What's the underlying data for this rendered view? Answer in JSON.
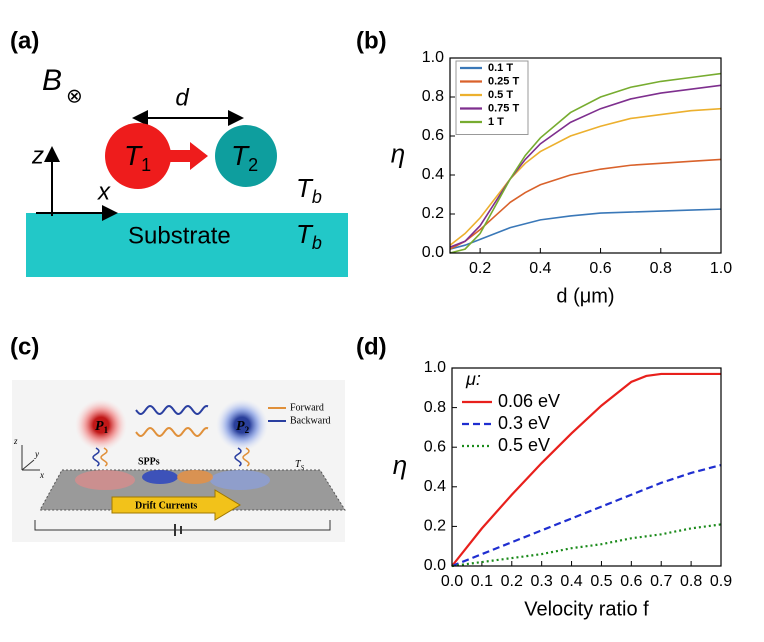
{
  "panels": {
    "a": {
      "label": "(a)",
      "b": "B",
      "otimes": "⊗",
      "d": "d",
      "t1": [
        "T",
        "1"
      ],
      "t2": [
        "T",
        "2"
      ],
      "z": "z",
      "x": "x",
      "tb_top": [
        "T",
        "b"
      ],
      "substrate": "Substrate",
      "tb_bottom": [
        "T",
        "b"
      ]
    },
    "b": {
      "label": "(b)"
    },
    "c": {
      "label": "(c)",
      "p1": [
        "P",
        "1"
      ],
      "p2": [
        "P",
        "2"
      ],
      "forward": "Forward",
      "backward": "Backward",
      "spps": "SPPs",
      "drift": "Drift Currents",
      "ts": [
        "T",
        "S"
      ],
      "z": "z",
      "y": "y",
      "x": "x"
    },
    "d": {
      "label": "(d)"
    }
  },
  "chart_data": [
    {
      "type": "line",
      "x_label": "d (μm)",
      "y_label": "η",
      "x": [
        0.1,
        0.15,
        0.2,
        0.25,
        0.3,
        0.35,
        0.4,
        0.5,
        0.6,
        0.7,
        0.8,
        0.9,
        1.0
      ],
      "xlim": [
        0.1,
        1.0
      ],
      "ylim": [
        0,
        1
      ],
      "xticks": [
        0.2,
        0.4,
        0.6,
        0.8,
        {
          "value": 1,
          "label": "1.0"
        }
      ],
      "yticks": [
        {
          "value": 0,
          "label": "0.0"
        },
        0.2,
        0.4,
        0.6,
        0.8,
        {
          "value": 1,
          "label": "1.0"
        }
      ],
      "legend": "upper left",
      "legend_style": "boxed",
      "series": [
        {
          "name": "0.1 T",
          "color": "#3a78b8",
          "dash": "solid",
          "values": [
            0.02,
            0.04,
            0.07,
            0.1,
            0.13,
            0.15,
            0.17,
            0.19,
            0.205,
            0.21,
            0.215,
            0.22,
            0.225
          ]
        },
        {
          "name": "0.25 T",
          "color": "#d9622b",
          "dash": "solid",
          "values": [
            0.02,
            0.06,
            0.12,
            0.19,
            0.26,
            0.31,
            0.35,
            0.4,
            0.43,
            0.45,
            0.46,
            0.47,
            0.48
          ]
        },
        {
          "name": "0.5 T",
          "color": "#ecb02e",
          "dash": "solid",
          "values": [
            0.04,
            0.1,
            0.18,
            0.28,
            0.38,
            0.46,
            0.52,
            0.6,
            0.65,
            0.69,
            0.71,
            0.73,
            0.74
          ]
        },
        {
          "name": "0.75 T",
          "color": "#7e2f8e",
          "dash": "solid",
          "values": [
            0.03,
            0.06,
            0.14,
            0.26,
            0.38,
            0.48,
            0.56,
            0.67,
            0.74,
            0.79,
            0.82,
            0.84,
            0.86
          ]
        },
        {
          "name": "1 T",
          "color": "#77ac30",
          "dash": "solid",
          "values": [
            0,
            0.02,
            0.1,
            0.24,
            0.38,
            0.5,
            0.59,
            0.72,
            0.8,
            0.85,
            0.88,
            0.9,
            0.92
          ]
        }
      ]
    },
    {
      "type": "line",
      "x_label": "Velocity ratio f",
      "y_label": "η",
      "legend_title": "μ:",
      "x": [
        0,
        0.1,
        0.2,
        0.3,
        0.4,
        0.5,
        0.6,
        0.65,
        0.7,
        0.8,
        0.9
      ],
      "xlim": [
        0,
        0.9
      ],
      "ylim": [
        0,
        1
      ],
      "xticks": [
        {
          "value": 0,
          "label": "0.0"
        },
        0.1,
        0.2,
        0.3,
        0.4,
        0.5,
        0.6,
        0.7,
        0.8,
        0.9
      ],
      "yticks": [
        {
          "value": 0,
          "label": "0.0"
        },
        0.2,
        0.4,
        0.6,
        0.8,
        {
          "value": 1,
          "label": "1.0"
        }
      ],
      "legend": "upper left",
      "legend_style": "plain",
      "series": [
        {
          "name": "0.06 eV",
          "color": "#e8201c",
          "dash": "solid",
          "values": [
            0,
            0.19,
            0.36,
            0.52,
            0.67,
            0.81,
            0.93,
            0.96,
            0.97,
            0.97,
            0.97
          ]
        },
        {
          "name": "0.3 eV",
          "color": "#1f2ed0",
          "dash": "dashed",
          "values": [
            0,
            0.06,
            0.12,
            0.18,
            0.24,
            0.3,
            0.36,
            0.39,
            0.42,
            0.47,
            0.51
          ]
        },
        {
          "name": "0.5 eV",
          "color": "#1a8a1a",
          "dash": "dotted",
          "values": [
            0,
            0.02,
            0.04,
            0.06,
            0.09,
            0.11,
            0.14,
            0.15,
            0.16,
            0.19,
            0.21
          ]
        }
      ]
    }
  ]
}
